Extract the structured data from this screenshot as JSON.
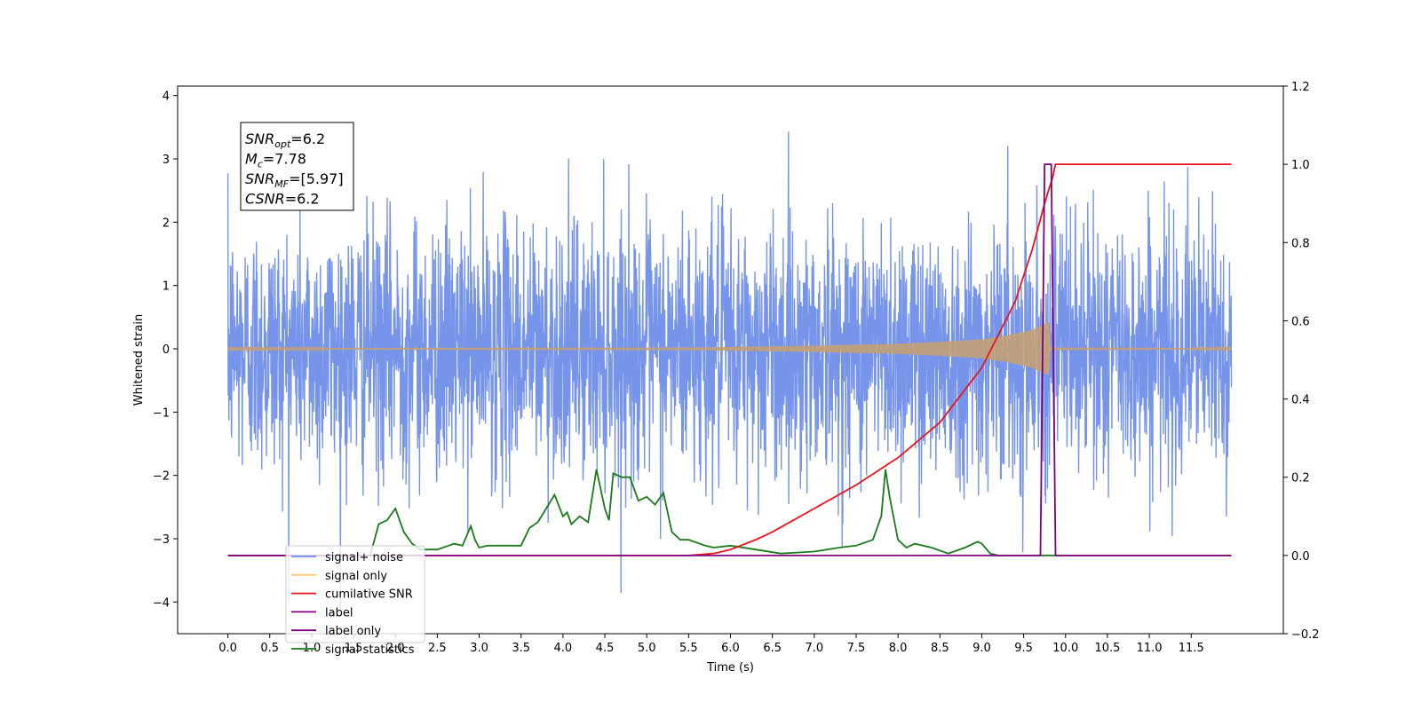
{
  "chart_data": {
    "type": "line",
    "xlabel": "Time (s)",
    "ylabel": "Whitened strain",
    "ylabel_right": "",
    "xlim": [
      -0.6,
      12.6
    ],
    "ylim": [
      -4.5,
      4.15
    ],
    "ylim_right": [
      -0.2,
      1.2
    ],
    "x_ticks": [
      0.0,
      0.5,
      1.0,
      1.5,
      2.0,
      2.5,
      3.0,
      3.5,
      4.0,
      4.5,
      5.0,
      5.5,
      6.0,
      6.5,
      7.0,
      7.5,
      8.0,
      8.5,
      9.0,
      9.5,
      10.0,
      10.5,
      11.0,
      11.5
    ],
    "x_tick_labels": [
      "0.0",
      "0.5",
      "1.0",
      "1.5",
      "2.0",
      "2.5",
      "3.0",
      "3.5",
      "4.0",
      "4.5",
      "5.0",
      "5.5",
      "6.0",
      "6.5",
      "7.0",
      "7.5",
      "8.0",
      "8.5",
      "9.0",
      "9.5",
      "10.0",
      "10.5",
      "11.0",
      "11.5"
    ],
    "y_ticks": [
      -4,
      -3,
      -2,
      -1,
      0,
      1,
      2,
      3,
      4
    ],
    "y_tick_labels": [
      "−4",
      "−3",
      "−2",
      "−1",
      "0",
      "1",
      "2",
      "3",
      "4"
    ],
    "y_right_ticks": [
      -0.2,
      0.0,
      0.2,
      0.4,
      0.6,
      0.8,
      1.0,
      1.2
    ],
    "y_right_tick_labels": [
      "−0.2",
      "0.0",
      "0.2",
      "0.4",
      "0.6",
      "0.8",
      "1.0",
      "1.2"
    ],
    "grid": false,
    "legend_position": "lower-left",
    "legend": [
      {
        "label": "signal+ noise",
        "color": "#6f8ee8"
      },
      {
        "label": "signal only",
        "color": "#ffc870"
      },
      {
        "label": "cumilative SNR",
        "color": "#e8141c"
      },
      {
        "label": "label",
        "color": "#800080"
      },
      {
        "label": "label only",
        "color": "#800080"
      },
      {
        "label": "signal statistics",
        "color": "#1a7a1a"
      }
    ],
    "annotation_box": [
      {
        "name": "SNR",
        "sub": "opt",
        "value": "=6.2"
      },
      {
        "name": "M",
        "sub": "c",
        "value": "=7.78"
      },
      {
        "name": "SNR",
        "sub": "MF",
        "value": "=[5.97]"
      },
      {
        "name": "CSNR",
        "sub": "",
        "value": "=6.2"
      }
    ],
    "series": [
      {
        "name": "signal+ noise",
        "axis": "left",
        "color": "#6f8ee8",
        "description_values": {
          "t_start": 0.0,
          "t_end": 11.98,
          "typical_amplitude": 1.0,
          "max": 3.75,
          "min": -4.1
        }
      },
      {
        "name": "signal only",
        "axis": "left",
        "color": "#c4a075",
        "envelope": {
          "x": [
            0.0,
            5.5,
            6.0,
            7.0,
            8.0,
            8.5,
            9.0,
            9.3,
            9.6,
            9.8,
            9.82,
            11.98
          ],
          "y": [
            0.01,
            0.02,
            0.03,
            0.05,
            0.08,
            0.11,
            0.15,
            0.21,
            0.3,
            0.42,
            0.02,
            0.01
          ]
        }
      },
      {
        "name": "cumilative SNR",
        "axis": "right",
        "color": "#e8141c",
        "x": [
          0.0,
          5.5,
          5.8,
          6.0,
          6.3,
          6.5,
          7.0,
          7.5,
          8.0,
          8.5,
          9.0,
          9.4,
          9.6,
          9.75,
          9.85,
          9.88,
          11.98
        ],
        "y": [
          0.0,
          0.0,
          0.005,
          0.015,
          0.04,
          0.06,
          0.12,
          0.18,
          0.25,
          0.34,
          0.48,
          0.65,
          0.78,
          0.9,
          0.97,
          1.0,
          1.0
        ]
      },
      {
        "name": "label",
        "axis": "right",
        "color": "#800080",
        "x": [
          0.0,
          9.69,
          9.7,
          9.75,
          9.76,
          9.82,
          9.83,
          9.88,
          9.89,
          11.98
        ],
        "y": [
          0.0,
          0.0,
          0.0,
          1.0,
          1.0,
          1.0,
          1.0,
          0.0,
          0.0,
          0.0
        ]
      },
      {
        "name": "signal statistics",
        "axis": "right",
        "color": "#1a7a1a",
        "x": [
          0.0,
          1.7,
          1.8,
          1.9,
          2.0,
          2.1,
          2.2,
          2.3,
          2.5,
          2.7,
          2.8,
          2.9,
          2.95,
          3.0,
          3.1,
          3.3,
          3.5,
          3.6,
          3.7,
          3.8,
          3.9,
          4.0,
          4.05,
          4.1,
          4.2,
          4.3,
          4.4,
          4.5,
          4.55,
          4.6,
          4.7,
          4.75,
          4.8,
          4.9,
          5.0,
          5.1,
          5.2,
          5.3,
          5.4,
          5.5,
          5.7,
          5.8,
          6.0,
          6.3,
          6.6,
          7.0,
          7.3,
          7.5,
          7.7,
          7.8,
          7.85,
          7.9,
          8.0,
          8.1,
          8.2,
          8.4,
          8.6,
          8.8,
          8.95,
          9.0,
          9.1,
          9.2,
          9.4,
          9.6,
          11.98
        ],
        "y": [
          0.0,
          0.0,
          0.08,
          0.09,
          0.12,
          0.06,
          0.03,
          0.015,
          0.015,
          0.03,
          0.025,
          0.075,
          0.04,
          0.02,
          0.025,
          0.025,
          0.025,
          0.07,
          0.085,
          0.12,
          0.155,
          0.1,
          0.11,
          0.08,
          0.1,
          0.085,
          0.22,
          0.12,
          0.09,
          0.21,
          0.2,
          0.2,
          0.2,
          0.14,
          0.15,
          0.13,
          0.16,
          0.06,
          0.04,
          0.04,
          0.025,
          0.02,
          0.025,
          0.015,
          0.005,
          0.01,
          0.02,
          0.025,
          0.04,
          0.1,
          0.22,
          0.15,
          0.04,
          0.02,
          0.03,
          0.02,
          0.005,
          0.02,
          0.035,
          0.03,
          0.005,
          0.0,
          0.0,
          0.0,
          0.0
        ]
      }
    ]
  }
}
